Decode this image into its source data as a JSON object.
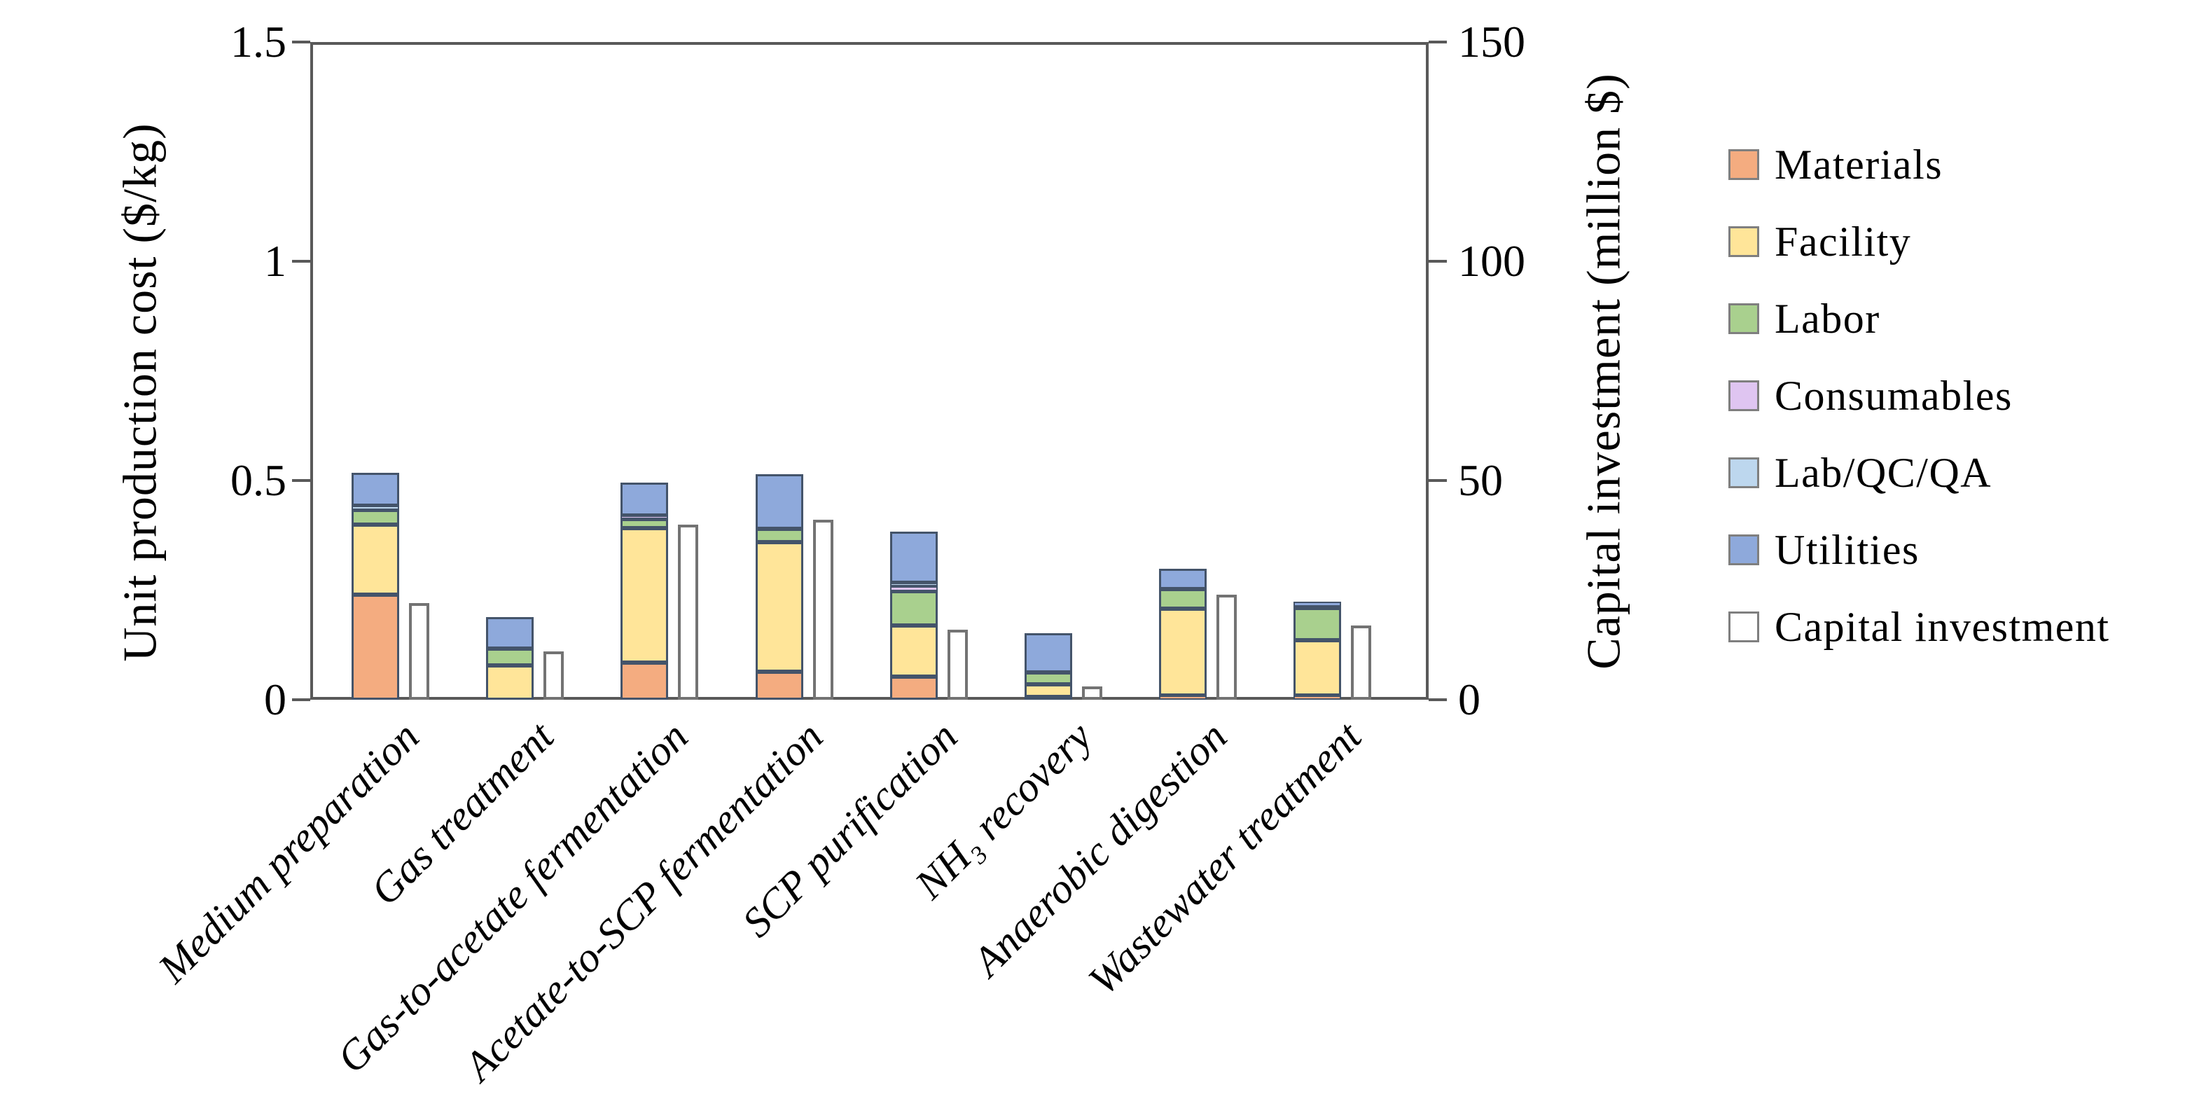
{
  "figure": {
    "description": "Stacked bar chart of unit production cost by process section with secondary capital investment bars"
  },
  "chart_data": {
    "type": "bar",
    "stacked": true,
    "grid": false,
    "legend_position": "right",
    "categories": [
      "Medium preparation",
      "Gas treatment",
      "Gas-to-acetate fermentation",
      "Acetate-to-SCP fermentation",
      "SCP purification",
      "NH₃ recovery",
      "Anaerobic digestion",
      "Wastewater treatment"
    ],
    "left_axis": {
      "label": "Unit production cost ($/kg)",
      "range": [
        0,
        1.5
      ],
      "ticks": [
        "0",
        "0.5",
        "1",
        "1.5"
      ],
      "tick_values": [
        0,
        0.5,
        1,
        1.5
      ]
    },
    "right_axis": {
      "label": "Capital investment (million $)",
      "range": [
        0,
        150
      ],
      "ticks": [
        "0",
        "50",
        "100",
        "150"
      ],
      "tick_values": [
        0,
        50,
        100,
        150
      ]
    },
    "series": [
      {
        "name": "Materials",
        "axis": "left",
        "color": "#F4AC80",
        "values": [
          0.24,
          0.0,
          0.084,
          0.064,
          0.052,
          0.007,
          0.01,
          0.01
        ]
      },
      {
        "name": "Facility",
        "axis": "left",
        "color": "#FFE599",
        "values": [
          0.16,
          0.079,
          0.308,
          0.295,
          0.118,
          0.028,
          0.198,
          0.125
        ]
      },
      {
        "name": "Labor",
        "axis": "left",
        "color": "#A9D08E",
        "values": [
          0.033,
          0.038,
          0.02,
          0.03,
          0.077,
          0.028,
          0.044,
          0.074
        ]
      },
      {
        "name": "Consumables",
        "axis": "left",
        "color": "#DFC5F1",
        "values": [
          0.0,
          0.0,
          0.008,
          0.0,
          0.012,
          0.0,
          0.0,
          0.0
        ]
      },
      {
        "name": "Lab/QC/QA",
        "axis": "left",
        "color": "#BDD7EE",
        "values": [
          0.01,
          0.0,
          0.0,
          0.0,
          0.008,
          0.0,
          0.0,
          0.004
        ]
      },
      {
        "name": "Utilities",
        "axis": "left",
        "color": "#8EA9DB",
        "values": [
          0.075,
          0.072,
          0.075,
          0.125,
          0.116,
          0.088,
          0.046,
          0.011
        ]
      },
      {
        "name": "Capital investment",
        "axis": "right",
        "style": "outline",
        "color": "#FFFFFF",
        "border": "#737373",
        "values": [
          22,
          11,
          40,
          41,
          16,
          3,
          24,
          17
        ]
      }
    ],
    "colors": {
      "segment_border": "#44546A",
      "axis_line": "#595959",
      "capital_border": "#737373",
      "background": "#FFFFFF"
    }
  }
}
